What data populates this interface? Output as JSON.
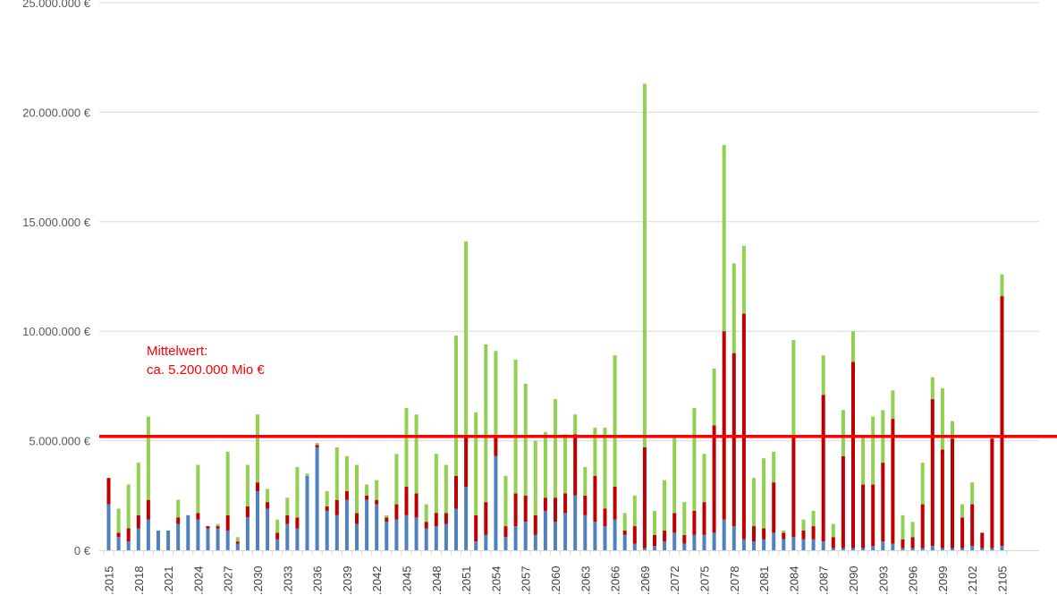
{
  "chart_data": {
    "type": "bar",
    "stacked": true,
    "grid": true,
    "ylim": [
      0,
      25000000
    ],
    "yticks": [
      {
        "value": 0,
        "label": "0 €"
      },
      {
        "value": 5000000,
        "label": "5.000.000 €"
      },
      {
        "value": 10000000,
        "label": "10.000.000 €"
      },
      {
        "value": 15000000,
        "label": "15.000.000 €"
      },
      {
        "value": 20000000,
        "label": "20.000.000 €"
      },
      {
        "value": 25000000,
        "label": "25.000.000 €"
      }
    ],
    "categories": [
      2015,
      2016,
      2017,
      2018,
      2019,
      2020,
      2021,
      2022,
      2023,
      2024,
      2025,
      2026,
      2027,
      2028,
      2029,
      2030,
      2031,
      2032,
      2033,
      2034,
      2035,
      2036,
      2037,
      2038,
      2039,
      2040,
      2041,
      2042,
      2043,
      2044,
      2045,
      2046,
      2047,
      2048,
      2049,
      2050,
      2051,
      2052,
      2053,
      2054,
      2055,
      2056,
      2057,
      2058,
      2059,
      2060,
      2061,
      2062,
      2063,
      2064,
      2065,
      2066,
      2067,
      2068,
      2069,
      2070,
      2071,
      2072,
      2073,
      2074,
      2075,
      2076,
      2077,
      2078,
      2079,
      2080,
      2081,
      2082,
      2083,
      2084,
      2085,
      2086,
      2087,
      2088,
      2089,
      2090,
      2091,
      2092,
      2093,
      2094,
      2095,
      2096,
      2097,
      2098,
      2099,
      2100,
      2101,
      2102,
      2103,
      2104,
      2105
    ],
    "xtick_labels": [
      ".2015",
      ".2018",
      ".2021",
      ".2024",
      ".2027",
      ".2030",
      ".2033",
      ".2036",
      ".2039",
      ".2042",
      ".2045",
      ".2048",
      ".2051",
      ".2054",
      ".2057",
      ".2060",
      ".2063",
      ".2066",
      ".2069",
      ".2072",
      ".2075",
      ".2078",
      ".2081",
      ".2084",
      ".2087",
      ".2090",
      ".2093",
      ".2096",
      ".2099",
      ".2102",
      ".2105"
    ],
    "series": [
      {
        "color": "#4f81bd",
        "values": [
          2100000,
          600000,
          400000,
          1000000,
          1400000,
          900000,
          900000,
          1200000,
          1600000,
          1400000,
          1000000,
          1000000,
          900000,
          300000,
          1500000,
          2700000,
          1900000,
          500000,
          1200000,
          1000000,
          3400000,
          4700000,
          1800000,
          1600000,
          2300000,
          1200000,
          2300000,
          2100000,
          1300000,
          1400000,
          1600000,
          1500000,
          1000000,
          1100000,
          1200000,
          1900000,
          2900000,
          400000,
          700000,
          4300000,
          600000,
          1100000,
          1300000,
          700000,
          1800000,
          1300000,
          1700000,
          2500000,
          1600000,
          1300000,
          1100000,
          1400000,
          700000,
          300000,
          100000,
          200000,
          400000,
          800000,
          300000,
          700000,
          700000,
          800000,
          1400000,
          1100000,
          500000,
          400000,
          500000,
          800000,
          500000,
          600000,
          500000,
          500000,
          400000,
          100000,
          100000,
          100000,
          100000,
          200000,
          400000,
          300000,
          100000,
          100000,
          100000,
          200000,
          100000,
          100000,
          100000,
          200000,
          100000,
          100000,
          200000
        ]
      },
      {
        "color": "#c00000",
        "values": [
          1200000,
          200000,
          600000,
          600000,
          900000,
          0,
          0,
          300000,
          0,
          300000,
          100000,
          100000,
          700000,
          100000,
          500000,
          400000,
          300000,
          300000,
          400000,
          500000,
          0,
          100000,
          200000,
          700000,
          400000,
          500000,
          200000,
          200000,
          200000,
          700000,
          1300000,
          1100000,
          300000,
          600000,
          500000,
          1500000,
          2300000,
          1200000,
          1500000,
          900000,
          500000,
          1500000,
          1200000,
          900000,
          600000,
          1100000,
          900000,
          2800000,
          900000,
          2100000,
          800000,
          1500000,
          200000,
          800000,
          4600000,
          500000,
          500000,
          900000,
          400000,
          1100000,
          1500000,
          4900000,
          8600000,
          7900000,
          10300000,
          700000,
          500000,
          2300000,
          300000,
          4600000,
          400000,
          600000,
          6700000,
          500000,
          4200000,
          8500000,
          2900000,
          2800000,
          3600000,
          5700000,
          400000,
          500000,
          2000000,
          6700000,
          4500000,
          5000000,
          1400000,
          1900000,
          700000,
          5000000,
          11400000
        ]
      },
      {
        "color": "#92d050",
        "values": [
          0,
          1100000,
          2000000,
          2400000,
          3800000,
          0,
          0,
          800000,
          0,
          2200000,
          0,
          100000,
          2900000,
          200000,
          1900000,
          3100000,
          600000,
          600000,
          800000,
          2300000,
          100000,
          100000,
          700000,
          2400000,
          1600000,
          2200000,
          500000,
          900000,
          100000,
          2300000,
          3600000,
          3600000,
          800000,
          2700000,
          2200000,
          6400000,
          8900000,
          4700000,
          7200000,
          3900000,
          2300000,
          6100000,
          5100000,
          3400000,
          3000000,
          4500000,
          2700000,
          900000,
          1300000,
          2200000,
          3700000,
          6000000,
          800000,
          1400000,
          16600000,
          1100000,
          2300000,
          3500000,
          1500000,
          4700000,
          2200000,
          2600000,
          8500000,
          4100000,
          3100000,
          2200000,
          3200000,
          1400000,
          100000,
          4400000,
          500000,
          700000,
          1800000,
          600000,
          2100000,
          1400000,
          2200000,
          3100000,
          2400000,
          1300000,
          1100000,
          700000,
          1900000,
          1000000,
          2800000,
          800000,
          600000,
          1000000,
          0,
          0,
          1000000
        ]
      }
    ],
    "reference_line": {
      "value": 5200000,
      "color": "#ff0000"
    },
    "annotation": [
      "Mittelwert:",
      "ca. 5.200.000 Mio €"
    ]
  }
}
